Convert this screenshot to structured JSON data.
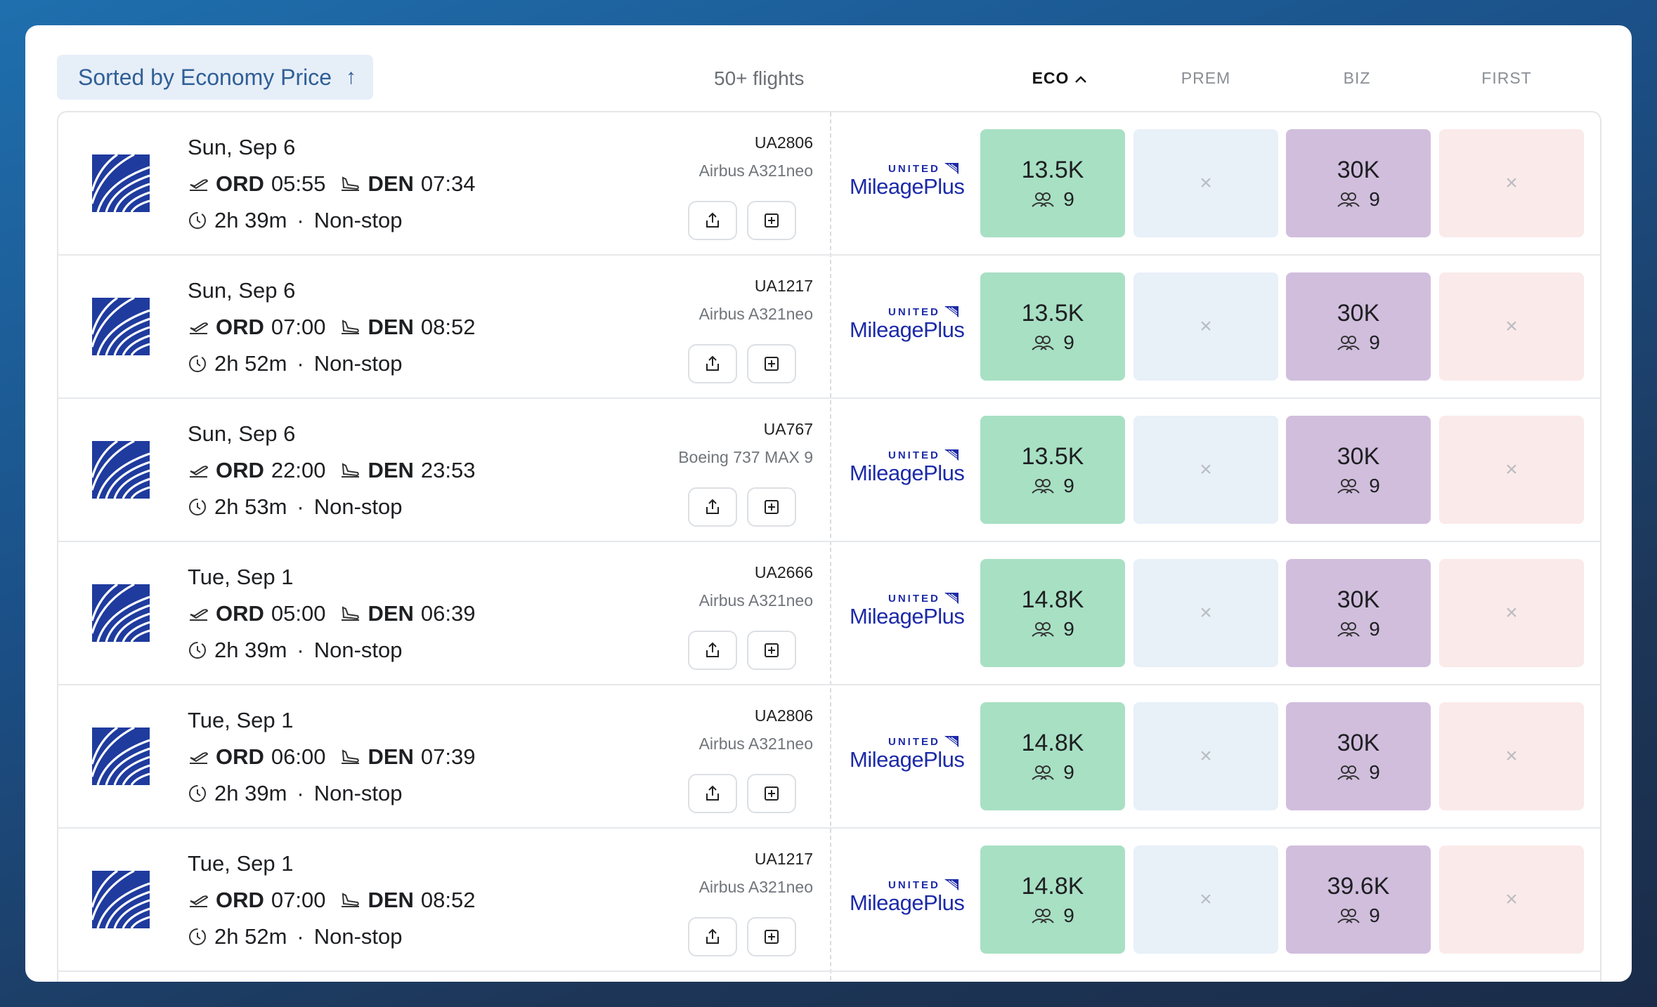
{
  "header": {
    "sort_label": "Sorted by Economy Price",
    "sort_arrow": "↑",
    "count": "50+ flights",
    "columns": [
      {
        "label": "ECO",
        "active": true,
        "chevron": "^"
      },
      {
        "label": "PREM",
        "active": false
      },
      {
        "label": "BIZ",
        "active": false
      },
      {
        "label": "FIRST",
        "active": false
      }
    ]
  },
  "program": {
    "top": "UNITED",
    "name": "MileagePlus",
    "color": "#1c2aa8"
  },
  "unavailable_mark": "×",
  "icons": [
    "united-globe-icon",
    "takeoff-icon",
    "landing-icon",
    "clock-icon",
    "share-icon",
    "add-icon",
    "seats-icon",
    "close-icon"
  ],
  "flights": [
    {
      "date": "Sun, Sep 6",
      "from": "ORD",
      "dep": "05:55",
      "to": "DEN",
      "arr": "07:34",
      "duration": "2h 39m",
      "stops": "Non-stop",
      "flight": "UA2806",
      "aircraft": "Airbus A321neo",
      "eco": "13.5K",
      "eco_seats": "9",
      "biz": "30K",
      "biz_seats": "9"
    },
    {
      "date": "Sun, Sep 6",
      "from": "ORD",
      "dep": "07:00",
      "to": "DEN",
      "arr": "08:52",
      "duration": "2h 52m",
      "stops": "Non-stop",
      "flight": "UA1217",
      "aircraft": "Airbus A321neo",
      "eco": "13.5K",
      "eco_seats": "9",
      "biz": "30K",
      "biz_seats": "9"
    },
    {
      "date": "Sun, Sep 6",
      "from": "ORD",
      "dep": "22:00",
      "to": "DEN",
      "arr": "23:53",
      "duration": "2h 53m",
      "stops": "Non-stop",
      "flight": "UA767",
      "aircraft": "Boeing 737 MAX 9",
      "eco": "13.5K",
      "eco_seats": "9",
      "biz": "30K",
      "biz_seats": "9"
    },
    {
      "date": "Tue, Sep 1",
      "from": "ORD",
      "dep": "05:00",
      "to": "DEN",
      "arr": "06:39",
      "duration": "2h 39m",
      "stops": "Non-stop",
      "flight": "UA2666",
      "aircraft": "Airbus A321neo",
      "eco": "14.8K",
      "eco_seats": "9",
      "biz": "30K",
      "biz_seats": "9"
    },
    {
      "date": "Tue, Sep 1",
      "from": "ORD",
      "dep": "06:00",
      "to": "DEN",
      "arr": "07:39",
      "duration": "2h 39m",
      "stops": "Non-stop",
      "flight": "UA2806",
      "aircraft": "Airbus A321neo",
      "eco": "14.8K",
      "eco_seats": "9",
      "biz": "30K",
      "biz_seats": "9"
    },
    {
      "date": "Tue, Sep 1",
      "from": "ORD",
      "dep": "07:00",
      "to": "DEN",
      "arr": "08:52",
      "duration": "2h 52m",
      "stops": "Non-stop",
      "flight": "UA1217",
      "aircraft": "Airbus A321neo",
      "eco": "14.8K",
      "eco_seats": "9",
      "biz": "39.6K",
      "biz_seats": "9"
    }
  ]
}
